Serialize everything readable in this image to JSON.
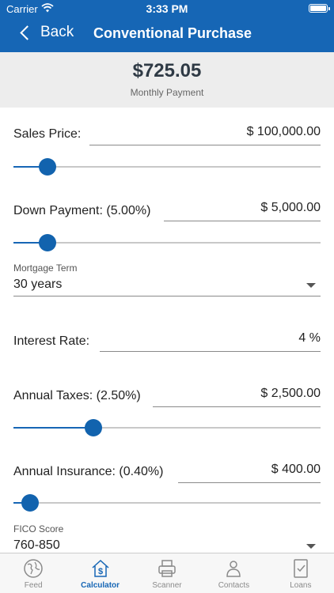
{
  "status_bar": {
    "carrier": "Carrier",
    "time": "3:33 PM"
  },
  "nav": {
    "back_label": "Back",
    "title": "Conventional Purchase"
  },
  "summary": {
    "payment": "$725.05",
    "payment_label": "Monthly Payment"
  },
  "form": {
    "sales_price": {
      "label": "Sales Price:",
      "value": "$ 100,000.00",
      "slider_fraction": 0.11
    },
    "down_payment": {
      "label": "Down Payment: (5.00%)",
      "value": "$ 5,000.00",
      "slider_fraction": 0.11
    },
    "mortgage_term": {
      "label": "Mortgage Term",
      "value": "30 years"
    },
    "interest_rate": {
      "label": "Interest Rate:",
      "value": "4 %"
    },
    "annual_taxes": {
      "label": "Annual Taxes: (2.50%)",
      "value": "$ 2,500.00",
      "slider_fraction": 0.26
    },
    "annual_insurance": {
      "label": "Annual Insurance: (0.40%)",
      "value": "$ 400.00",
      "slider_fraction": 0.055
    },
    "fico_score": {
      "label": "FICO Score",
      "value": "760-850"
    }
  },
  "tabs": [
    {
      "label": "Feed",
      "icon": "globe-icon",
      "active": false
    },
    {
      "label": "Calculator",
      "icon": "calculator-house-icon",
      "active": true
    },
    {
      "label": "Scanner",
      "icon": "scanner-icon",
      "active": false
    },
    {
      "label": "Contacts",
      "icon": "contacts-icon",
      "active": false
    },
    {
      "label": "Loans",
      "icon": "loans-icon",
      "active": false
    }
  ],
  "colors": {
    "brand": "#1666b5",
    "summary_bg": "#ededed",
    "inactive_tab": "#8a8a8a"
  }
}
